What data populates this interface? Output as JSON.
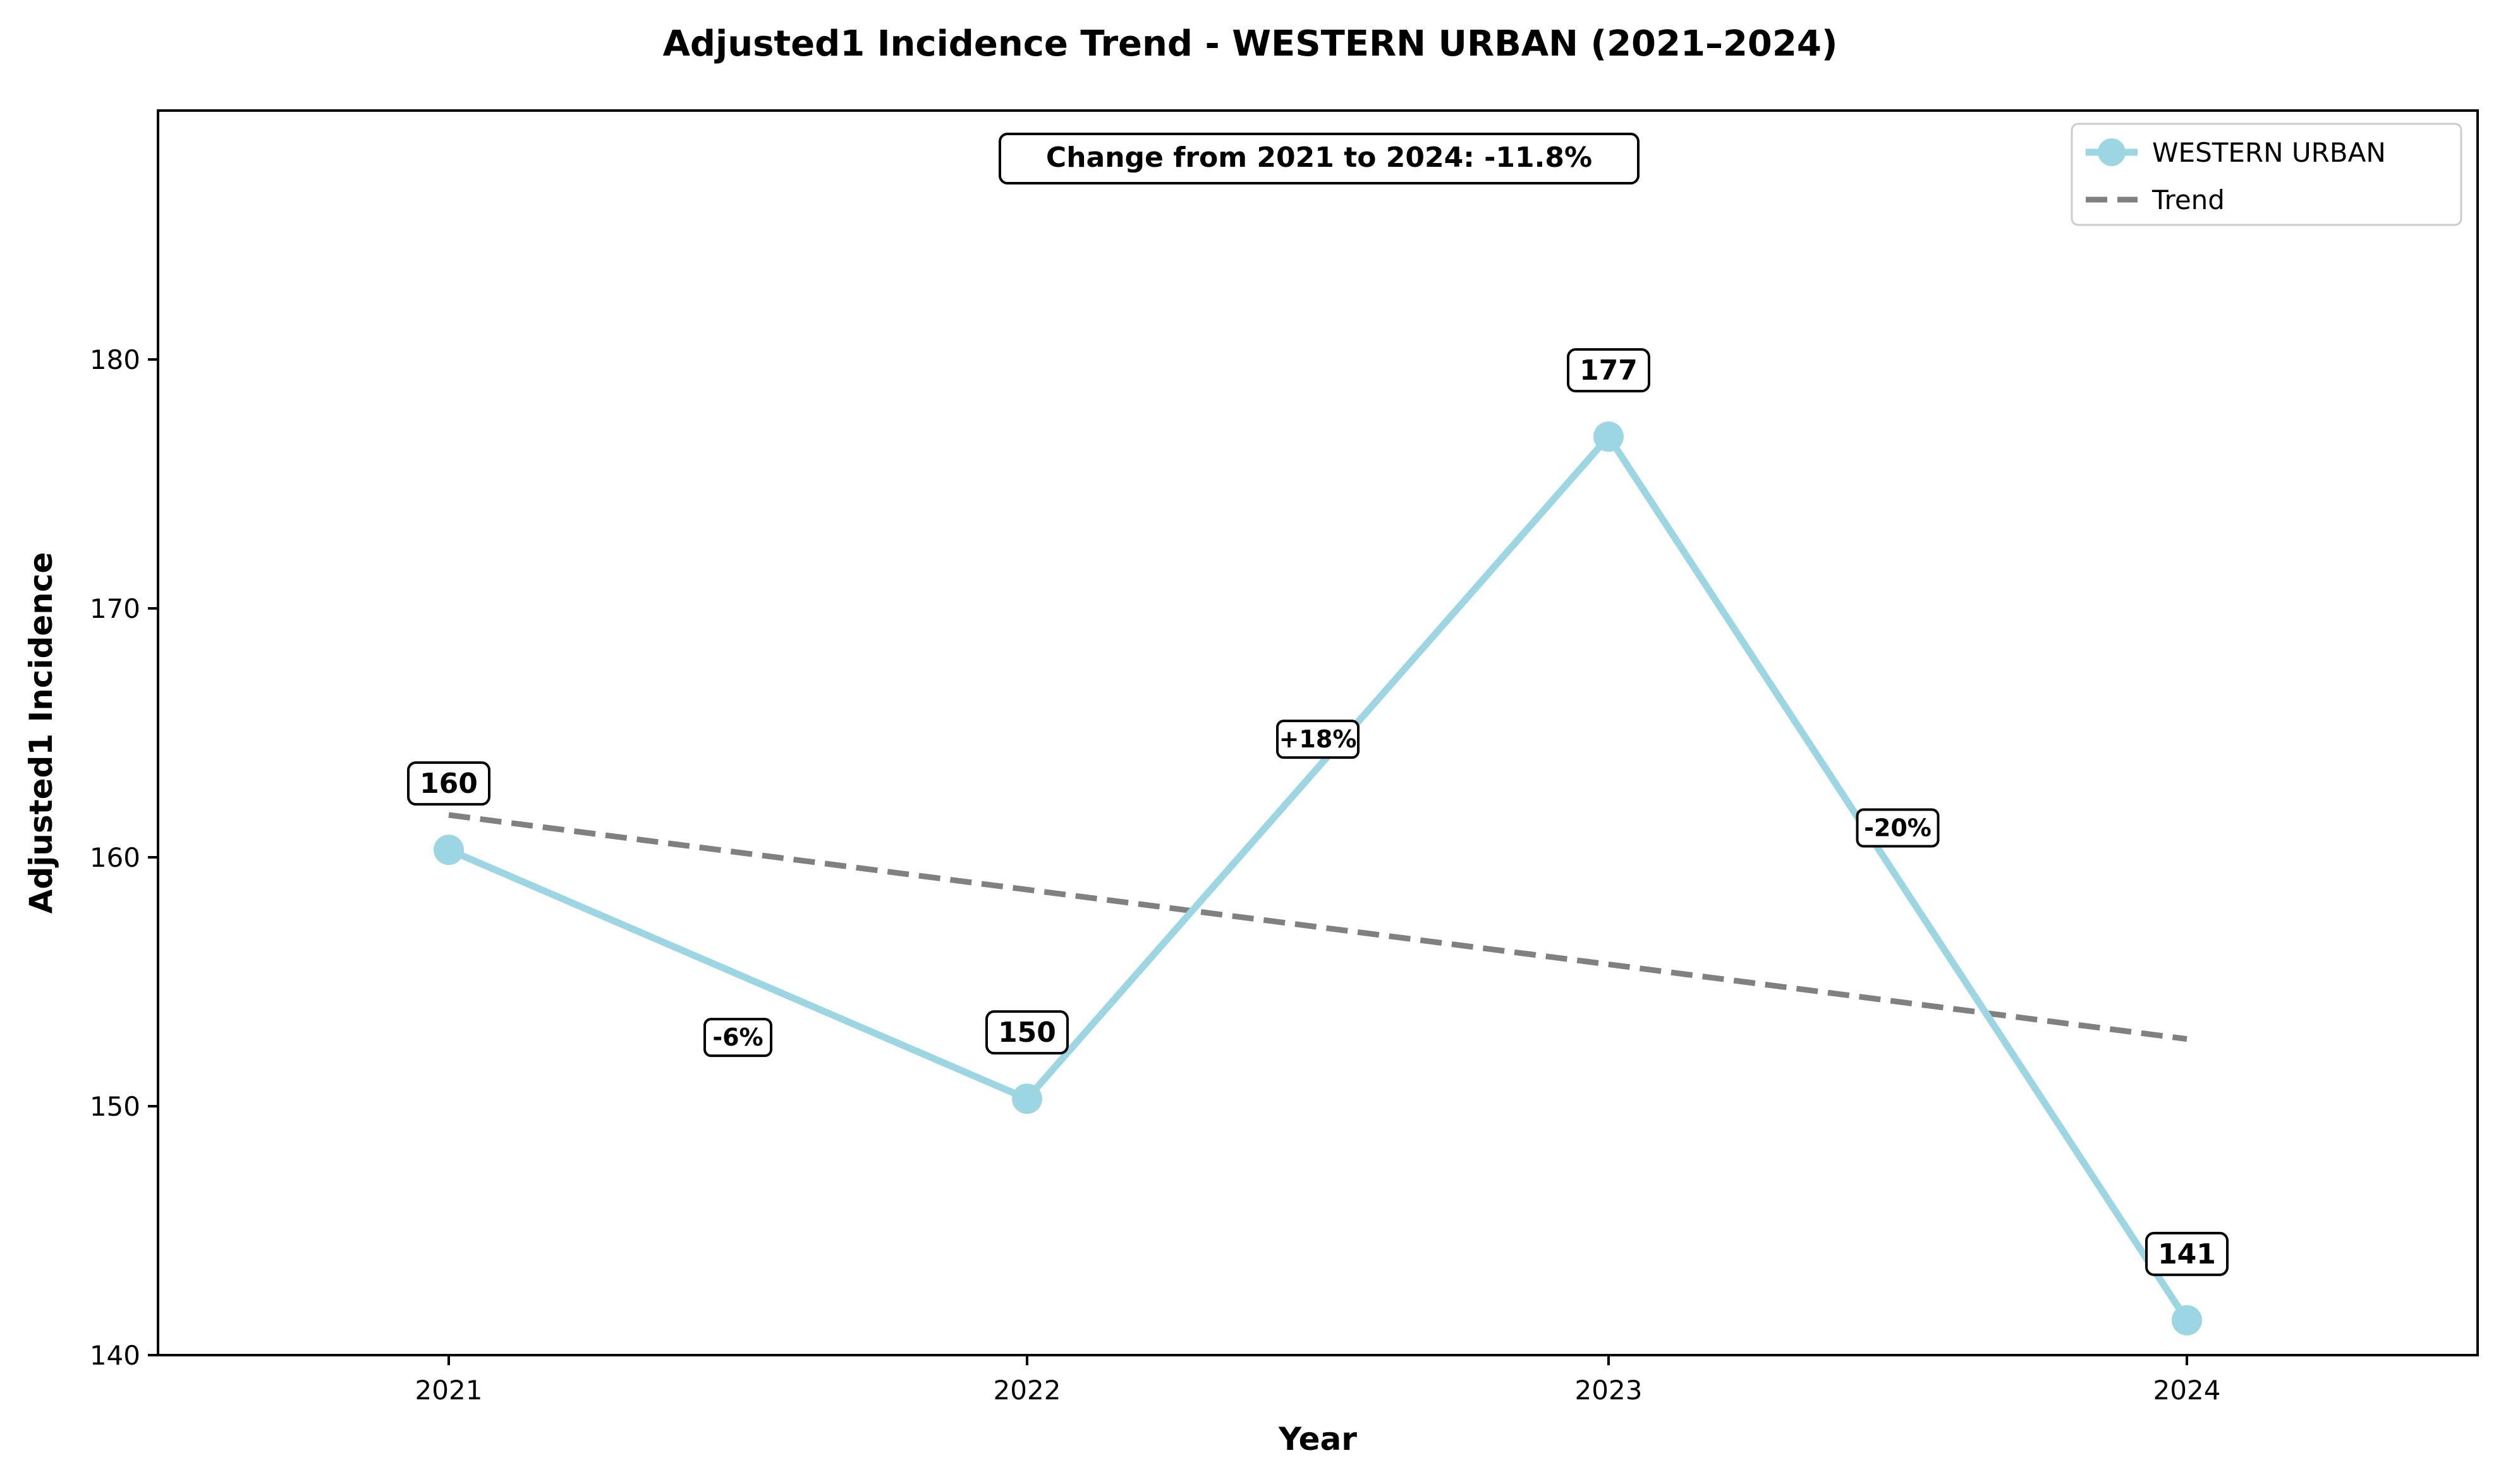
{
  "chart_data": {
    "type": "line",
    "title": "Adjusted1 Incidence Trend - WESTERN URBAN (2021–2024)",
    "xlabel": "Year",
    "ylabel": "Adjusted1 Incidence",
    "x": [
      "2021",
      "2022",
      "2023",
      "2024"
    ],
    "x_ticks": [
      "2021",
      "2022",
      "2023",
      "2024"
    ],
    "y_ticks": [
      "140",
      "150",
      "160",
      "170",
      "180"
    ],
    "ylim": [
      140,
      190
    ],
    "series": [
      {
        "name": "WESTERN URBAN",
        "values": [
          160.3,
          150.3,
          176.9,
          141.4
        ],
        "labels": [
          "160",
          "150",
          "177",
          "141"
        ],
        "color": "#9dd6e3"
      },
      {
        "name": "Trend",
        "values": [
          161.7,
          158.7,
          155.7,
          152.7
        ],
        "color": "#808080",
        "style": "dashed"
      }
    ],
    "changes": [
      "-6%",
      "+18%",
      "-20%"
    ],
    "annotation": "Change from 2021 to 2024: -11.8%",
    "legend_position": "top-right",
    "grid": false
  }
}
